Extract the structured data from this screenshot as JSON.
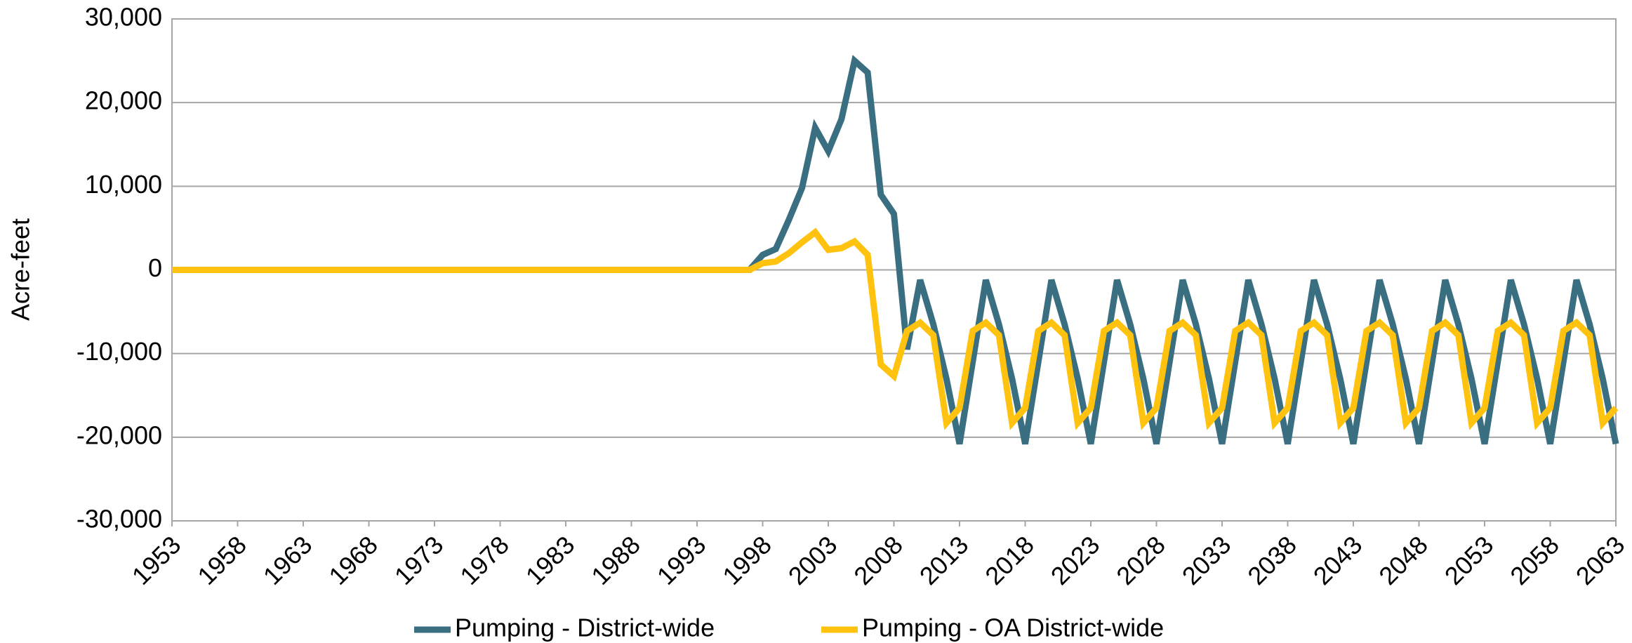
{
  "chart_data": {
    "type": "line",
    "y_label": "Acre-feet",
    "x": [
      1953,
      1954,
      1955,
      1956,
      1957,
      1958,
      1959,
      1960,
      1961,
      1962,
      1963,
      1964,
      1965,
      1966,
      1967,
      1968,
      1969,
      1970,
      1971,
      1972,
      1973,
      1974,
      1975,
      1976,
      1977,
      1978,
      1979,
      1980,
      1981,
      1982,
      1983,
      1984,
      1985,
      1986,
      1987,
      1988,
      1989,
      1990,
      1991,
      1992,
      1993,
      1994,
      1995,
      1996,
      1997,
      1998,
      1999,
      2000,
      2001,
      2002,
      2003,
      2004,
      2005,
      2006,
      2007,
      2008,
      2009,
      2010,
      2011,
      2012,
      2013,
      2014,
      2015,
      2016,
      2017,
      2018,
      2019,
      2020,
      2021,
      2022,
      2023,
      2024,
      2025,
      2026,
      2027,
      2028,
      2029,
      2030,
      2031,
      2032,
      2033,
      2034,
      2035,
      2036,
      2037,
      2038,
      2039,
      2040,
      2041,
      2042,
      2043,
      2044,
      2045,
      2046,
      2047,
      2048,
      2049,
      2050,
      2051,
      2052,
      2053,
      2054,
      2055,
      2056,
      2057,
      2058,
      2059,
      2060,
      2061,
      2062,
      2063
    ],
    "series": [
      {
        "name": "Pumping - District-wide",
        "color": "#3a6f82",
        "values": [
          0,
          0,
          0,
          0,
          0,
          0,
          0,
          0,
          0,
          0,
          0,
          0,
          0,
          0,
          0,
          0,
          0,
          0,
          0,
          0,
          0,
          0,
          0,
          0,
          0,
          0,
          0,
          0,
          0,
          0,
          0,
          0,
          0,
          0,
          0,
          0,
          0,
          0,
          0,
          0,
          0,
          0,
          0,
          0,
          0,
          1800,
          2500,
          6000,
          9800,
          17000,
          14200,
          18000,
          25000,
          23600,
          9000,
          6700,
          -9500,
          -1200,
          -6500,
          -13000,
          -20800,
          -11000,
          -1200,
          -6500,
          -13000,
          -20800,
          -11000,
          -1200,
          -6500,
          -13000,
          -20800,
          -11000,
          -1200,
          -6500,
          -13000,
          -20800,
          -11000,
          -1200,
          -6500,
          -13000,
          -20800,
          -11000,
          -1200,
          -6500,
          -13000,
          -20800,
          -11000,
          -1200,
          -6500,
          -13000,
          -20800,
          -11000,
          -1200,
          -6500,
          -13000,
          -20800,
          -11000,
          -1200,
          -6500,
          -13000,
          -20800,
          -11000,
          -1200,
          -6500,
          -13000,
          -20800,
          -11000,
          -1200,
          -6500,
          -13000,
          -20800
        ]
      },
      {
        "name": "Pumping - OA District-wide",
        "color": "#ffc20e",
        "values": [
          0,
          0,
          0,
          0,
          0,
          0,
          0,
          0,
          0,
          0,
          0,
          0,
          0,
          0,
          0,
          0,
          0,
          0,
          0,
          0,
          0,
          0,
          0,
          0,
          0,
          0,
          0,
          0,
          0,
          0,
          0,
          0,
          0,
          0,
          0,
          0,
          0,
          0,
          0,
          0,
          0,
          0,
          0,
          0,
          0,
          800,
          1000,
          2000,
          3300,
          4500,
          2400,
          2600,
          3400,
          1800,
          -11300,
          -12700,
          -7300,
          -6300,
          -7800,
          -18300,
          -16500,
          -7300,
          -6300,
          -7800,
          -18300,
          -16500,
          -7300,
          -6300,
          -7800,
          -18300,
          -16500,
          -7300,
          -6300,
          -7800,
          -18300,
          -16500,
          -7300,
          -6300,
          -7800,
          -18300,
          -16500,
          -7300,
          -6300,
          -7800,
          -18300,
          -16500,
          -7300,
          -6300,
          -7800,
          -18300,
          -16500,
          -7300,
          -6300,
          -7800,
          -18300,
          -16500,
          -7300,
          -6300,
          -7800,
          -18300,
          -16500,
          -7300,
          -6300,
          -7800,
          -18300,
          -16500,
          -7300,
          -6300,
          -7800,
          -18300,
          -16500
        ]
      }
    ],
    "xlim": [
      1953,
      2063
    ],
    "xticks": [
      1953,
      1958,
      1963,
      1968,
      1973,
      1978,
      1983,
      1988,
      1993,
      1998,
      2003,
      2008,
      2013,
      2018,
      2023,
      2028,
      2033,
      2038,
      2043,
      2048,
      2053,
      2058,
      2063
    ],
    "ylim": [
      -30000,
      30000
    ],
    "yticks": [
      {
        "value": -30000,
        "label": "-30,000"
      },
      {
        "value": -20000,
        "label": "-20,000"
      },
      {
        "value": -10000,
        "label": "-10,000"
      },
      0,
      {
        "value": 10000,
        "label": "10,000"
      },
      {
        "value": 20000,
        "label": "20,000"
      },
      {
        "value": 30000,
        "label": "30,000"
      }
    ],
    "grid": true,
    "legend": "bottom"
  }
}
